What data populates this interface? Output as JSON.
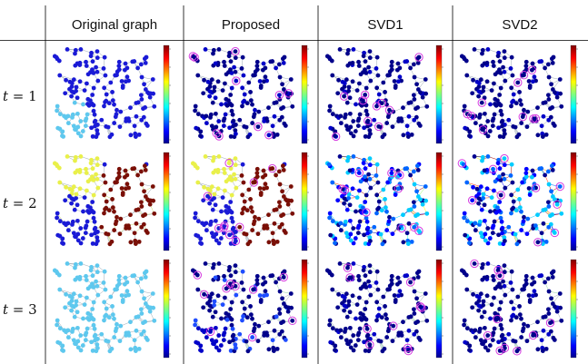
{
  "figure": {
    "columns": [
      {
        "label": "Original graph"
      },
      {
        "label": "Proposed"
      },
      {
        "label": "SVD1"
      },
      {
        "label": "SVD2"
      }
    ],
    "rows": [
      {
        "var": "t",
        "eq": " = ",
        "value": "1"
      },
      {
        "var": "t",
        "eq": " = ",
        "value": "2"
      },
      {
        "var": "t",
        "eq": " = ",
        "value": "3"
      }
    ],
    "colors": {
      "dark_blue": "#00008b",
      "blue": "#1a1ad6",
      "light_blue": "#5ec8ee",
      "yellow": "#e9f04a",
      "dark_red": "#7a0f06",
      "sample_ring": "#d63be0",
      "edge": "#9aa8b4"
    }
  }
}
